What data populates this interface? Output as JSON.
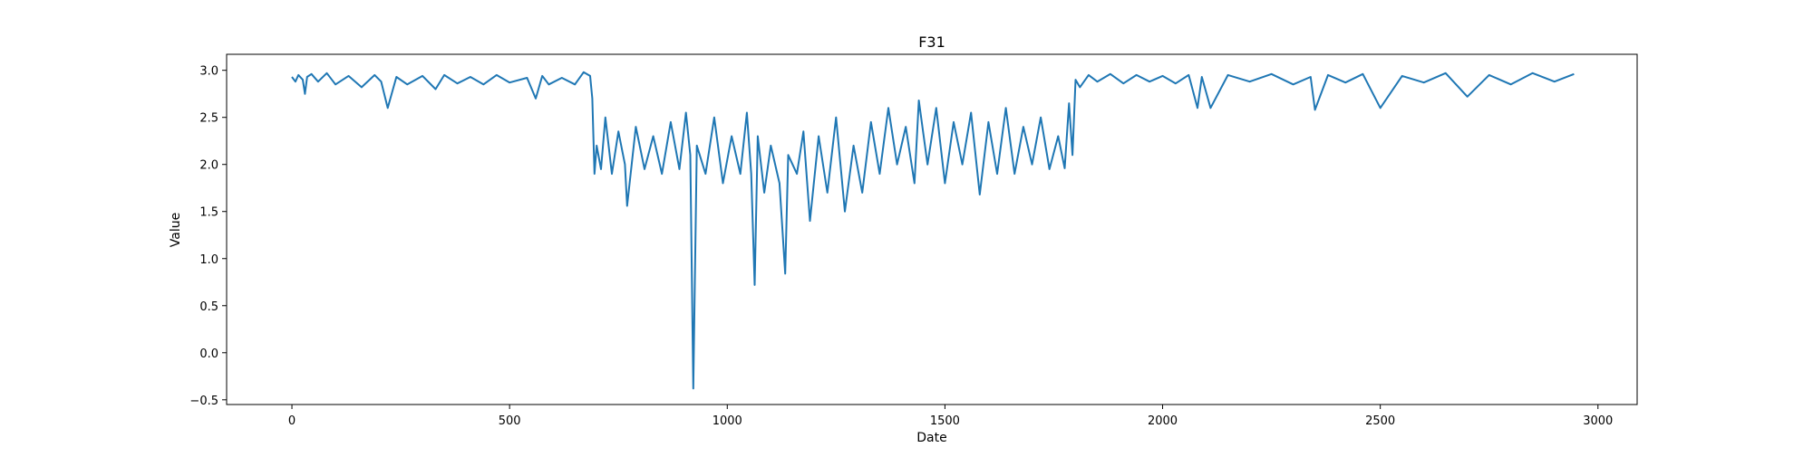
{
  "chart_data": {
    "type": "line",
    "title": "F31",
    "xlabel": "Date",
    "ylabel": "Value",
    "xlim": [
      -150,
      3090
    ],
    "ylim": [
      -0.55,
      3.17
    ],
    "x_ticks": [
      0,
      500,
      1000,
      1500,
      2000,
      2500,
      3000
    ],
    "x_tick_labels": [
      "0",
      "500",
      "1000",
      "1500",
      "2000",
      "2500",
      "3000"
    ],
    "y_ticks": [
      -0.5,
      0.0,
      0.5,
      1.0,
      1.5,
      2.0,
      2.5,
      3.0
    ],
    "y_tick_labels": [
      "−0.5",
      "0.0",
      "0.5",
      "1.0",
      "1.5",
      "2.0",
      "2.5",
      "3.0"
    ],
    "grid": false,
    "legend": "none",
    "line_color": "#1f77b4",
    "series": [
      {
        "x": [
          0,
          8,
          15,
          25,
          30,
          35,
          45,
          60,
          80,
          100,
          130,
          160,
          190,
          205,
          220,
          240,
          265,
          300,
          330,
          350,
          380,
          410,
          440,
          470,
          500,
          540,
          560,
          575,
          590,
          620,
          650,
          670,
          685,
          690,
          695,
          700,
          710,
          720,
          735,
          750,
          765,
          770,
          790,
          810,
          830,
          850,
          870,
          890,
          905,
          915,
          922,
          930,
          950,
          970,
          990,
          1010,
          1030,
          1045,
          1055,
          1063,
          1070,
          1085,
          1100,
          1120,
          1133,
          1140,
          1160,
          1175,
          1190,
          1210,
          1230,
          1250,
          1270,
          1290,
          1310,
          1330,
          1350,
          1370,
          1390,
          1410,
          1430,
          1440,
          1460,
          1480,
          1500,
          1520,
          1540,
          1560,
          1580,
          1600,
          1620,
          1640,
          1660,
          1680,
          1700,
          1720,
          1740,
          1760,
          1775,
          1785,
          1793,
          1800,
          1810,
          1830,
          1850,
          1880,
          1910,
          1940,
          1970,
          2000,
          2030,
          2060,
          2080,
          2090,
          2110,
          2150,
          2200,
          2250,
          2300,
          2340,
          2350,
          2380,
          2420,
          2460,
          2500,
          2550,
          2600,
          2650,
          2700,
          2750,
          2800,
          2850,
          2900,
          2945
        ],
        "y": [
          2.93,
          2.88,
          2.95,
          2.9,
          2.75,
          2.93,
          2.96,
          2.88,
          2.97,
          2.85,
          2.94,
          2.82,
          2.95,
          2.88,
          2.6,
          2.93,
          2.85,
          2.94,
          2.8,
          2.95,
          2.86,
          2.93,
          2.85,
          2.95,
          2.87,
          2.92,
          2.7,
          2.94,
          2.85,
          2.92,
          2.85,
          2.98,
          2.94,
          2.7,
          1.9,
          2.2,
          1.95,
          2.5,
          1.9,
          2.35,
          2.0,
          1.56,
          2.4,
          1.95,
          2.3,
          1.9,
          2.45,
          1.95,
          2.55,
          2.1,
          -0.38,
          2.2,
          1.9,
          2.5,
          1.8,
          2.3,
          1.9,
          2.55,
          1.9,
          0.72,
          2.3,
          1.7,
          2.2,
          1.8,
          0.84,
          2.1,
          1.9,
          2.35,
          1.4,
          2.3,
          1.7,
          2.5,
          1.5,
          2.2,
          1.7,
          2.45,
          1.9,
          2.6,
          2.0,
          2.4,
          1.8,
          2.68,
          2.0,
          2.6,
          1.8,
          2.45,
          2.0,
          2.55,
          1.68,
          2.45,
          1.9,
          2.6,
          1.9,
          2.4,
          2.0,
          2.5,
          1.95,
          2.3,
          1.96,
          2.65,
          2.1,
          2.9,
          2.82,
          2.95,
          2.88,
          2.96,
          2.86,
          2.95,
          2.88,
          2.94,
          2.86,
          2.95,
          2.6,
          2.93,
          2.6,
          2.95,
          2.88,
          2.96,
          2.85,
          2.93,
          2.58,
          2.95,
          2.87,
          2.96,
          2.6,
          2.94,
          2.87,
          2.97,
          2.72,
          2.95,
          2.85,
          2.97,
          2.88,
          2.96
        ]
      }
    ]
  }
}
